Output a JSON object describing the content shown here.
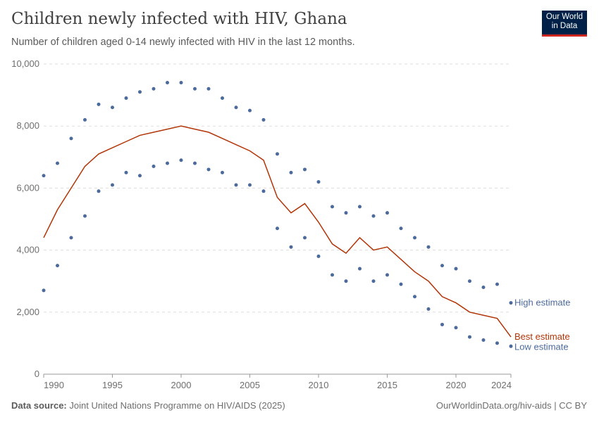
{
  "header": {
    "title": "Children newly infected with HIV, Ghana",
    "subtitle": "Number of children aged 0-14 newly infected with HIV in the last 12 months.",
    "logo": "Our World in Data",
    "logo_line1": "Our World",
    "logo_line2": "in Data"
  },
  "footer": {
    "source_label": "Data source:",
    "source": "Joint United Nations Programme on HIV/AIDS (2025)",
    "url": "OurWorldinData.org/hiv-aids | CC BY"
  },
  "chart_data": {
    "type": "line",
    "title": "Children newly infected with HIV, Ghana",
    "xlim": [
      1990,
      2024
    ],
    "ylim": [
      0,
      10000
    ],
    "x_ticks": [
      "1990",
      "1995",
      "2000",
      "2005",
      "2010",
      "2015",
      "2020",
      "2024"
    ],
    "y_ticks": [
      "0",
      "2,000",
      "4,000",
      "6,000",
      "8,000",
      "10,000"
    ],
    "grid": "horizontal dashed",
    "legend": "right end labels",
    "x": [
      1990,
      1991,
      1992,
      1993,
      1994,
      1995,
      1996,
      1997,
      1998,
      1999,
      2000,
      2001,
      2002,
      2003,
      2004,
      2005,
      2006,
      2007,
      2008,
      2009,
      2010,
      2011,
      2012,
      2013,
      2014,
      2015,
      2016,
      2017,
      2018,
      2019,
      2020,
      2021,
      2022,
      2023,
      2024
    ],
    "series": [
      {
        "name": "High estimate",
        "style": "dots",
        "color": "#4c6a9c",
        "values": [
          6400,
          6800,
          7600,
          8200,
          8700,
          8600,
          8900,
          9100,
          9200,
          9400,
          9400,
          9200,
          9200,
          8900,
          8600,
          8500,
          8200,
          7100,
          6500,
          6600,
          6200,
          5400,
          5200,
          5400,
          5100,
          5200,
          4700,
          4400,
          4100,
          3500,
          3400,
          3000,
          2800,
          2900,
          2300
        ]
      },
      {
        "name": "Best estimate",
        "style": "line",
        "color": "#b13507",
        "values": [
          4400,
          5300,
          6000,
          6700,
          7100,
          7300,
          7500,
          7700,
          7800,
          7900,
          8000,
          7900,
          7800,
          7600,
          7400,
          7200,
          6900,
          5700,
          5200,
          5500,
          4900,
          4200,
          3900,
          4400,
          4000,
          4100,
          3700,
          3300,
          3000,
          2500,
          2300,
          2000,
          1900,
          1800,
          1200
        ]
      },
      {
        "name": "Low estimate",
        "style": "dots",
        "color": "#4c6a9c",
        "values": [
          2700,
          3500,
          4400,
          5100,
          5900,
          6100,
          6500,
          6400,
          6700,
          6800,
          6900,
          6800,
          6600,
          6500,
          6100,
          6100,
          5900,
          4700,
          4100,
          4400,
          3800,
          3200,
          3000,
          3400,
          3000,
          3200,
          2900,
          2500,
          2100,
          1600,
          1500,
          1200,
          1100,
          1000,
          900
        ]
      }
    ]
  }
}
